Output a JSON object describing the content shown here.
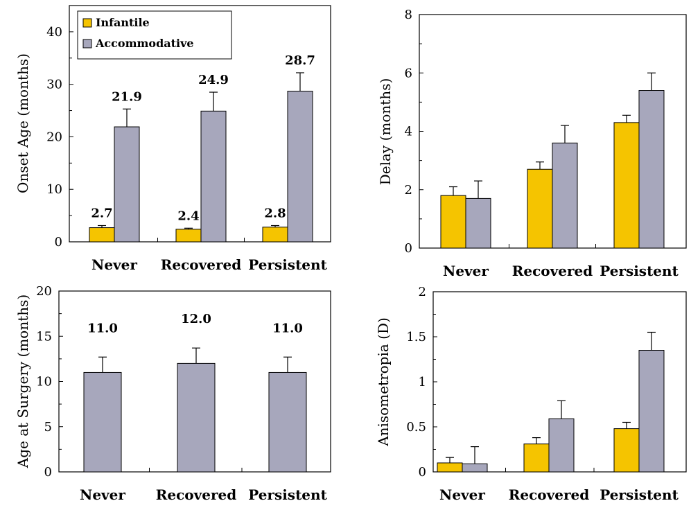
{
  "colors": {
    "infantile": "#f5c400",
    "accommodative": "#a7a7bc",
    "frame": "#000000"
  },
  "chart_data": [
    {
      "type": "bar",
      "ylabel": "Onset Age (months)",
      "ylim": [
        0,
        45
      ],
      "yticks": [
        "0",
        "10",
        "20",
        "30",
        "40"
      ],
      "categories": [
        "Never",
        "Recovered",
        "Persistent"
      ],
      "legend": {
        "placement": "top-left",
        "entries": [
          "Infantile",
          "Accommodative"
        ]
      },
      "series": [
        {
          "name": "Infantile",
          "values": [
            2.7,
            2.4,
            2.8
          ],
          "errors": [
            0.4,
            0.2,
            0.3
          ],
          "labels": [
            "2.7",
            "2.4",
            "2.8"
          ]
        },
        {
          "name": "Accommodative",
          "values": [
            21.9,
            24.9,
            28.7
          ],
          "errors": [
            3.4,
            3.6,
            3.5
          ],
          "labels": [
            "21.9",
            "24.9",
            "28.7"
          ]
        }
      ]
    },
    {
      "type": "bar",
      "ylabel": "Delay (months)",
      "ylim": [
        0,
        8
      ],
      "yticks": [
        "0",
        "2",
        "4",
        "6",
        "8"
      ],
      "categories": [
        "Never",
        "Recovered",
        "Persistent"
      ],
      "series": [
        {
          "name": "Infantile",
          "values": [
            1.8,
            2.7,
            4.3
          ],
          "errors": [
            0.3,
            0.25,
            0.25
          ]
        },
        {
          "name": "Accommodative",
          "values": [
            1.7,
            3.6,
            5.4
          ],
          "errors": [
            0.6,
            0.6,
            0.6
          ]
        }
      ]
    },
    {
      "type": "bar",
      "ylabel": "Age at Surgery (months)",
      "ylim": [
        0,
        20
      ],
      "yticks": [
        "0",
        "5",
        "10",
        "15",
        "20"
      ],
      "categories": [
        "Never",
        "Recovered",
        "Persistent"
      ],
      "series": [
        {
          "name": "Accommodative",
          "values": [
            11.0,
            12.0,
            11.0
          ],
          "errors": [
            1.7,
            1.7,
            1.7
          ],
          "labels": [
            "11.0",
            "12.0",
            "11.0"
          ]
        }
      ]
    },
    {
      "type": "bar",
      "ylabel": "Anisometropia (D)",
      "ylim": [
        0,
        2
      ],
      "yticks": [
        "0",
        "0.5",
        "1",
        "1.5",
        "2"
      ],
      "categories": [
        "Never",
        "Recovered",
        "Persistent"
      ],
      "series": [
        {
          "name": "Infantile",
          "values": [
            0.1,
            0.31,
            0.48
          ],
          "errors": [
            0.06,
            0.07,
            0.07
          ]
        },
        {
          "name": "Accommodative",
          "values": [
            0.09,
            0.59,
            1.35
          ],
          "errors": [
            0.19,
            0.2,
            0.2
          ]
        }
      ]
    }
  ]
}
